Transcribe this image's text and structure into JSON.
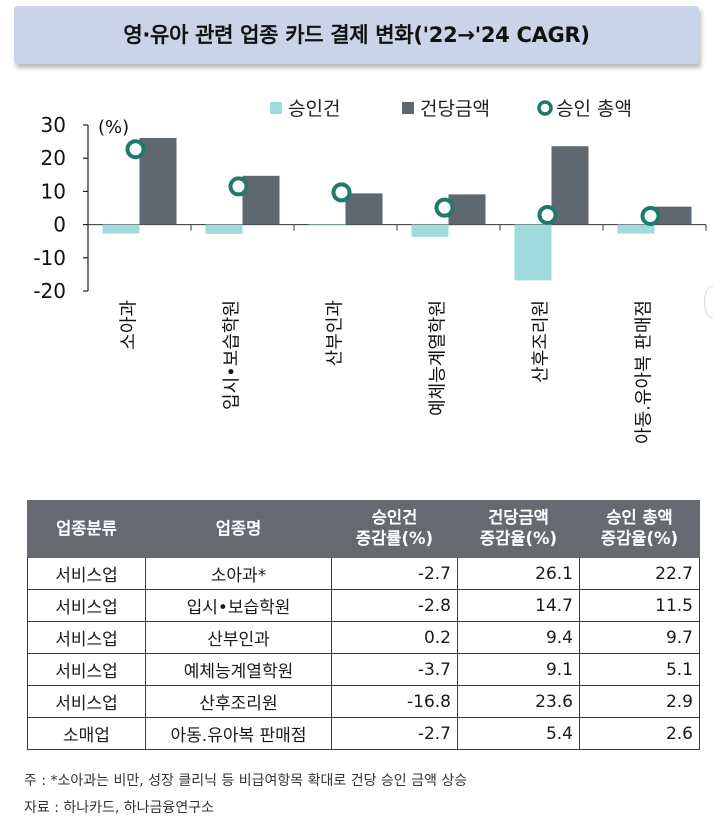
{
  "title": "영·유아 관련 업종 카드 결제 변화('22→'24 CAGR)",
  "chart_data": {
    "type": "bar",
    "y_unit_label": "(%)",
    "ylim": [
      -20,
      30
    ],
    "yticks": [
      30,
      20,
      10,
      0,
      -10,
      -20
    ],
    "categories": [
      "소아과",
      "입시•보습학원",
      "산부인과",
      "예체능계열학원",
      "산후조리원",
      "아동.유아복 판매점"
    ],
    "series": [
      {
        "name": "승인건",
        "kind": "bar",
        "color": "#9fdbdc",
        "values": [
          -2.7,
          -2.8,
          0.2,
          -3.7,
          -16.8,
          -2.7
        ]
      },
      {
        "name": "건당금액",
        "kind": "bar",
        "color": "#5f6770",
        "values": [
          26.1,
          14.7,
          9.4,
          9.1,
          23.6,
          5.4
        ]
      },
      {
        "name": "승인 총액",
        "kind": "marker",
        "color": "#1f7a6b",
        "values": [
          22.7,
          11.5,
          9.7,
          5.1,
          2.9,
          2.6
        ]
      }
    ],
    "legend_position": "top"
  },
  "table": {
    "headers": [
      [
        "업종분류"
      ],
      [
        "업종명"
      ],
      [
        "승인건",
        "증감률(%)"
      ],
      [
        "건당금액",
        "증감율(%)"
      ],
      [
        "승인 총액",
        "증감율(%)"
      ]
    ],
    "rows": [
      [
        "서비스업",
        "소아과*",
        "-2.7",
        "26.1",
        "22.7"
      ],
      [
        "서비스업",
        "입시•보습학원",
        "-2.8",
        "14.7",
        "11.5"
      ],
      [
        "서비스업",
        "산부인과",
        "0.2",
        "9.4",
        "9.7"
      ],
      [
        "서비스업",
        "예체능계열학원",
        "-3.7",
        "9.1",
        "5.1"
      ],
      [
        "서비스업",
        "산후조리원",
        "-16.8",
        "23.6",
        "2.9"
      ],
      [
        "소매업",
        "아동.유아복 판매점",
        "-2.7",
        "5.4",
        "2.6"
      ]
    ]
  },
  "notes": {
    "footnote": "주 : *소아과는 비만, 성장 클리닉 등 비급여항목 확대로 건당 승인 금액 상승",
    "source": "자료 : 하나카드, 하나금융연구소"
  }
}
